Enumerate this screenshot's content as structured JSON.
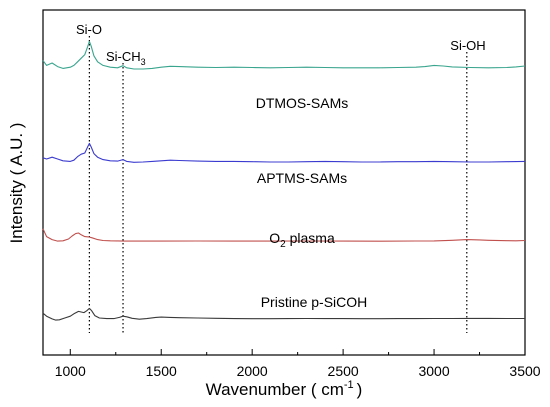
{
  "chart_data": {
    "type": "line",
    "xlabel": "Wavenumber ( cm",
    "xlabel_sup": "-1",
    "xlabel_end": ")",
    "ylabel": "Intensity ( A.U. )",
    "xlim": [
      850,
      3500
    ],
    "xticks": [
      1000,
      1500,
      2000,
      2500,
      3000,
      3500
    ],
    "y_ticks_shown": false,
    "grid": false,
    "reference_lines": [
      {
        "label": "Si-O",
        "x": 1105
      },
      {
        "label_main": "Si-CH",
        "label_sub": "3",
        "x": 1290
      },
      {
        "label": "Si-OH",
        "x": 3180
      }
    ],
    "series": [
      {
        "label_main": "DTMOS-SAMs",
        "color": "#3aa58e",
        "points": [
          [
            850,
            0.74
          ],
          [
            870,
            0.66
          ],
          [
            900,
            0.7
          ],
          [
            930,
            0.64
          ],
          [
            960,
            0.61
          ],
          [
            1000,
            0.63
          ],
          [
            1020,
            0.66
          ],
          [
            1040,
            0.72
          ],
          [
            1060,
            0.78
          ],
          [
            1080,
            0.84
          ],
          [
            1095,
            0.97
          ],
          [
            1105,
            1.06
          ],
          [
            1115,
            0.98
          ],
          [
            1130,
            0.82
          ],
          [
            1150,
            0.72
          ],
          [
            1180,
            0.66
          ],
          [
            1220,
            0.63
          ],
          [
            1260,
            0.62
          ],
          [
            1290,
            0.655
          ],
          [
            1310,
            0.62
          ],
          [
            1350,
            0.6
          ],
          [
            1400,
            0.6
          ],
          [
            1450,
            0.61
          ],
          [
            1500,
            0.63
          ],
          [
            1550,
            0.645
          ],
          [
            1600,
            0.64
          ],
          [
            1700,
            0.63
          ],
          [
            1800,
            0.625
          ],
          [
            1900,
            0.63
          ],
          [
            2000,
            0.625
          ],
          [
            2100,
            0.62
          ],
          [
            2200,
            0.625
          ],
          [
            2300,
            0.63
          ],
          [
            2400,
            0.625
          ],
          [
            2500,
            0.62
          ],
          [
            2600,
            0.62
          ],
          [
            2700,
            0.62
          ],
          [
            2800,
            0.625
          ],
          [
            2900,
            0.63
          ],
          [
            2950,
            0.64
          ],
          [
            3000,
            0.66
          ],
          [
            3050,
            0.65
          ],
          [
            3100,
            0.635
          ],
          [
            3200,
            0.625
          ],
          [
            3300,
            0.62
          ],
          [
            3400,
            0.625
          ],
          [
            3450,
            0.635
          ],
          [
            3500,
            0.65
          ]
        ]
      },
      {
        "label_main": "APTMS-SAMs",
        "color": "#3b3bd0",
        "points": [
          [
            850,
            0.42
          ],
          [
            870,
            0.4
          ],
          [
            900,
            0.43
          ],
          [
            930,
            0.4
          ],
          [
            960,
            0.37
          ],
          [
            1000,
            0.36
          ],
          [
            1020,
            0.38
          ],
          [
            1040,
            0.44
          ],
          [
            1060,
            0.48
          ],
          [
            1080,
            0.5
          ],
          [
            1095,
            0.6
          ],
          [
            1105,
            0.66
          ],
          [
            1115,
            0.6
          ],
          [
            1130,
            0.49
          ],
          [
            1150,
            0.43
          ],
          [
            1180,
            0.39
          ],
          [
            1220,
            0.37
          ],
          [
            1260,
            0.365
          ],
          [
            1290,
            0.39
          ],
          [
            1310,
            0.36
          ],
          [
            1350,
            0.345
          ],
          [
            1400,
            0.35
          ],
          [
            1450,
            0.36
          ],
          [
            1500,
            0.37
          ],
          [
            1550,
            0.38
          ],
          [
            1600,
            0.375
          ],
          [
            1700,
            0.365
          ],
          [
            1800,
            0.36
          ],
          [
            1900,
            0.36
          ],
          [
            2000,
            0.355
          ],
          [
            2100,
            0.35
          ],
          [
            2200,
            0.35
          ],
          [
            2300,
            0.355
          ],
          [
            2400,
            0.36
          ],
          [
            2500,
            0.355
          ],
          [
            2600,
            0.35
          ],
          [
            2700,
            0.35
          ],
          [
            2800,
            0.355
          ],
          [
            2900,
            0.355
          ],
          [
            3000,
            0.36
          ],
          [
            3100,
            0.355
          ],
          [
            3200,
            0.35
          ],
          [
            3300,
            0.35
          ],
          [
            3400,
            0.355
          ],
          [
            3500,
            0.36
          ]
        ]
      },
      {
        "label_main": "O",
        "label_sub": "2",
        "label_end": " plasma",
        "color": "#c0504d",
        "points": [
          [
            850,
            0.37
          ],
          [
            870,
            0.24
          ],
          [
            900,
            0.19
          ],
          [
            930,
            0.165
          ],
          [
            960,
            0.17
          ],
          [
            990,
            0.2
          ],
          [
            1010,
            0.25
          ],
          [
            1030,
            0.29
          ],
          [
            1045,
            0.3
          ],
          [
            1060,
            0.27
          ],
          [
            1080,
            0.24
          ],
          [
            1100,
            0.235
          ],
          [
            1120,
            0.22
          ],
          [
            1150,
            0.19
          ],
          [
            1180,
            0.175
          ],
          [
            1220,
            0.17
          ],
          [
            1260,
            0.168
          ],
          [
            1300,
            0.165
          ],
          [
            1400,
            0.165
          ],
          [
            1500,
            0.165
          ],
          [
            1700,
            0.166
          ],
          [
            1900,
            0.165
          ],
          [
            2100,
            0.165
          ],
          [
            2300,
            0.166
          ],
          [
            2500,
            0.165
          ],
          [
            2700,
            0.164
          ],
          [
            2900,
            0.166
          ],
          [
            3000,
            0.168
          ],
          [
            3100,
            0.178
          ],
          [
            3180,
            0.19
          ],
          [
            3250,
            0.185
          ],
          [
            3300,
            0.178
          ],
          [
            3400,
            0.172
          ],
          [
            3450,
            0.17
          ],
          [
            3500,
            0.175
          ]
        ]
      },
      {
        "label_main": "Pristine p-SiCOH",
        "color": "#3a3a3a",
        "points": [
          [
            850,
            0.08
          ],
          [
            870,
            0.03
          ],
          [
            900,
            -0.015
          ],
          [
            920,
            -0.035
          ],
          [
            940,
            -0.03
          ],
          [
            970,
            0.0
          ],
          [
            1000,
            0.03
          ],
          [
            1020,
            0.07
          ],
          [
            1045,
            0.11
          ],
          [
            1060,
            0.1
          ],
          [
            1075,
            0.09
          ],
          [
            1090,
            0.12
          ],
          [
            1105,
            0.16
          ],
          [
            1118,
            0.12
          ],
          [
            1135,
            0.04
          ],
          [
            1160,
            0.0
          ],
          [
            1200,
            -0.01
          ],
          [
            1240,
            -0.01
          ],
          [
            1270,
            0.01
          ],
          [
            1290,
            0.03
          ],
          [
            1310,
            0.02
          ],
          [
            1340,
            -0.005
          ],
          [
            1380,
            -0.02
          ],
          [
            1420,
            -0.01
          ],
          [
            1470,
            0.01
          ],
          [
            1500,
            0.015
          ],
          [
            1550,
            0.01
          ],
          [
            1600,
            0.005
          ],
          [
            1700,
            0.0
          ],
          [
            1800,
            -0.005
          ],
          [
            1900,
            -0.01
          ],
          [
            2000,
            -0.012
          ],
          [
            2100,
            -0.012
          ],
          [
            2200,
            -0.01
          ],
          [
            2300,
            -0.008
          ],
          [
            2400,
            -0.01
          ],
          [
            2500,
            -0.01
          ],
          [
            2600,
            -0.012
          ],
          [
            2700,
            -0.012
          ],
          [
            2800,
            -0.01
          ],
          [
            2900,
            -0.01
          ],
          [
            3000,
            -0.008
          ],
          [
            3100,
            -0.008
          ],
          [
            3200,
            -0.006
          ],
          [
            3300,
            -0.006
          ],
          [
            3400,
            -0.008
          ],
          [
            3500,
            -0.008
          ]
        ]
      }
    ]
  }
}
